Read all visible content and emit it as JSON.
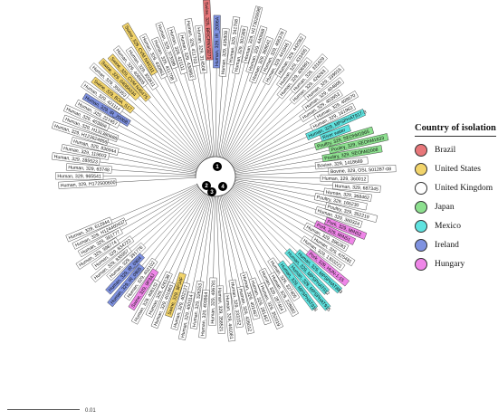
{
  "legend": {
    "title": "Country of isolation",
    "items": [
      {
        "label": "Brazil",
        "color": "#e8777a"
      },
      {
        "label": "United States",
        "color": "#f2d46b"
      },
      {
        "label": "United Kingdom",
        "color": "#ffffff"
      },
      {
        "label": "Japan",
        "color": "#8de08f"
      },
      {
        "label": "Mexico",
        "color": "#5fe3e0"
      },
      {
        "label": "Ireland",
        "color": "#7f92e0"
      },
      {
        "label": "Hungary",
        "color": "#ef86e8"
      }
    ]
  },
  "scale": {
    "label": "0.01"
  },
  "nodes": [
    "1",
    "2",
    "3",
    "4"
  ],
  "leaves": [
    {
      "label": "Human, 329, H172500600",
      "country": "United Kingdom"
    },
    {
      "label": "Human, 329, 965541",
      "country": "United Kingdom"
    },
    {
      "label": "Human, 329, 63748",
      "country": "United Kingdom"
    },
    {
      "label": "Human, 329, 285523",
      "country": "United Kingdom"
    },
    {
      "label": "Human, 329, 115603",
      "country": "United Kingdom"
    },
    {
      "label": "Human, 329, 836944",
      "country": "United Kingdom"
    },
    {
      "label": "Human, 329, H123624856",
      "country": "United Kingdom"
    },
    {
      "label": "Human, 329, H131380686",
      "country": "United Kingdom"
    },
    {
      "label": "Human, 329, 403866",
      "country": "United Kingdom"
    },
    {
      "label": "Human, 329, 227457",
      "country": "United Kingdom"
    },
    {
      "label": "Human, 329, IR_2006B",
      "country": "Ireland"
    },
    {
      "label": "Human, 329, 421114",
      "country": "United Kingdom"
    },
    {
      "label": "Swine, 329, BOA_S17",
      "country": "United States"
    },
    {
      "label": "Human, 329, 359353",
      "country": "United Kingdom"
    },
    {
      "label": "Swine, 329, 0408A034",
      "country": "United States"
    },
    {
      "label": "Swine, 329, CVM N46475",
      "country": "United States"
    },
    {
      "label": "Human, 329, 408805",
      "country": "United Kingdom"
    },
    {
      "label": "Human, 329, 303611",
      "country": "United Kingdom"
    },
    {
      "label": "Swine, 329, CVM N44311",
      "country": "United States"
    },
    {
      "label": "Human, 329, 430861",
      "country": "United Kingdom"
    },
    {
      "label": "Human, 329, 411708",
      "country": "United Kingdom"
    },
    {
      "label": "Human, 329, 373086",
      "country": "United Kingdom"
    },
    {
      "label": "Human, 329, 421111",
      "country": "United Kingdom"
    },
    {
      "label": "Human, 329, 430862",
      "country": "United Kingdom"
    },
    {
      "label": "Human, 329, 411703",
      "country": "United Kingdom"
    },
    {
      "label": "Human, 329, 314508",
      "country": "United Kingdom"
    },
    {
      "label": "Swine, 329, BR/CRNV3271",
      "country": "Brazil"
    },
    {
      "label": "Human, 329, IR_2006A",
      "country": "Ireland"
    },
    {
      "label": "Human, 329, 435808",
      "country": "United Kingdom"
    },
    {
      "label": "Human, 329, 341768",
      "country": "United Kingdom"
    },
    {
      "label": "Human, 329, 302389",
      "country": "United Kingdom"
    },
    {
      "label": "Human, 329, H173020698",
      "country": "United Kingdom"
    },
    {
      "label": "Human, 329, 440568",
      "country": "United Kingdom"
    },
    {
      "label": "Human, 329, 368641",
      "country": "United Kingdom"
    },
    {
      "label": "Human, 329, 406378",
      "country": "United Kingdom"
    },
    {
      "label": "Human, 329, 441846",
      "country": "United Kingdom"
    },
    {
      "label": "Human, 329, 442082",
      "country": "United Kingdom"
    },
    {
      "label": "Human, 329, 433495",
      "country": "United Kingdom"
    },
    {
      "label": "Human, 329, 406991",
      "country": "United Kingdom"
    },
    {
      "label": "Human, 329, 331629",
      "country": "United Kingdom"
    },
    {
      "label": "Human, 329, 426263",
      "country": "United Kingdom"
    },
    {
      "label": "Human, 329, 339016",
      "country": "United Kingdom"
    },
    {
      "label": "Human, 329, 404806",
      "country": "United Kingdom"
    },
    {
      "label": "Human, 329, 403953",
      "country": "United Kingdom"
    },
    {
      "label": "Human, 329, 408070",
      "country": "United Kingdom"
    },
    {
      "label": "Human, 329, 161963",
      "country": "United Kingdom"
    },
    {
      "label": "Human, 329, MPSPHAT917-3",
      "country": "Mexico"
    },
    {
      "label": "River water",
      "country": "Mexico"
    },
    {
      "label": "Poultry, 329, SEOhM1665",
      "country": "Japan"
    },
    {
      "label": "Poultry, 329, SEOhM1633",
      "country": "Japan"
    },
    {
      "label": "Poultry, 329, SEOhM2008",
      "country": "Japan"
    },
    {
      "label": "Bovine, 329, 1418689",
      "country": "United Kingdom"
    },
    {
      "label": "Bovine, 329, OSL S01287-08",
      "country": "United Kingdom"
    },
    {
      "label": "Human, 329, 360012",
      "country": "United Kingdom"
    },
    {
      "label": "Human, 329, 687345",
      "country": "United Kingdom"
    },
    {
      "label": "Human, 329, 368462",
      "country": "United Kingdom"
    },
    {
      "label": "Poultry, 329, 165230",
      "country": "United Kingdom"
    },
    {
      "label": "Poultry, 329, 352219",
      "country": "United Kingdom"
    },
    {
      "label": "Human, 329, 360324",
      "country": "United Kingdom"
    },
    {
      "label": "Pork, 329, MIN52",
      "country": "Hungary"
    },
    {
      "label": "Pork, 329, MIN51",
      "country": "Hungary"
    },
    {
      "label": "Human, 329, 396283",
      "country": "United Kingdom"
    },
    {
      "label": "Human, 329, 425481",
      "country": "United Kingdom"
    },
    {
      "label": "Human, 329, 1303221",
      "country": "United Kingdom"
    },
    {
      "label": "Pork, 329, HUN-1-15",
      "country": "Hungary"
    },
    {
      "label": "Human, 329, MPSPHAT883",
      "country": "Mexico"
    },
    {
      "label": "Human, 329, MPSPHAT912",
      "country": "Mexico"
    },
    {
      "label": "Human, 329, MPSPHAT915",
      "country": "Mexico"
    },
    {
      "label": "Human, 329, MPSPHAT918",
      "country": "Mexico"
    },
    {
      "label": "Human, 329, 327405",
      "country": "United Kingdom"
    },
    {
      "label": "Human, 329, 228882",
      "country": "United Kingdom"
    },
    {
      "label": "Human, 329, 287464",
      "country": "United Kingdom"
    },
    {
      "label": "Human, 329, 352019",
      "country": "United Kingdom"
    },
    {
      "label": "Human, 329, 281457",
      "country": "United Kingdom"
    },
    {
      "label": "Human, 329, 401467",
      "country": "United Kingdom"
    },
    {
      "label": "Human, 329, 426012",
      "country": "United Kingdom"
    },
    {
      "label": "Human, 329, 333152",
      "country": "United Kingdom"
    },
    {
      "label": "Human, 329, 441081",
      "country": "United Kingdom"
    },
    {
      "label": "Human, 329, 358521",
      "country": "United Kingdom"
    },
    {
      "label": "Human, 329, 406781",
      "country": "United Kingdom"
    },
    {
      "label": "Human, 329, 403864",
      "country": "United Kingdom"
    },
    {
      "label": "Human, 329, 326253",
      "country": "United Kingdom"
    },
    {
      "label": "Human, 329, 400314",
      "country": "United Kingdom"
    },
    {
      "label": "Human, 329, 402127",
      "country": "United Kingdom"
    },
    {
      "label": "Swine, 329, 9P34F",
      "country": "United States"
    },
    {
      "label": "Human, 329, 401863",
      "country": "United Kingdom"
    },
    {
      "label": "Human, 329, 426138",
      "country": "United Kingdom"
    },
    {
      "label": "Human, 329, 408132",
      "country": "United Kingdom"
    },
    {
      "label": "Swine, 329, 9P34J",
      "country": "Hungary"
    },
    {
      "label": "Human, 329, 402102",
      "country": "United Kingdom"
    },
    {
      "label": "Human, 329, IR_0905",
      "country": "Ireland"
    },
    {
      "label": "Human, 329, IR_0904",
      "country": "Ireland"
    },
    {
      "label": "Human, 329, 391776",
      "country": "United Kingdom"
    },
    {
      "label": "Human, 329, 835957",
      "country": "United Kingdom"
    },
    {
      "label": "Human, 329, 834722",
      "country": "United Kingdom"
    },
    {
      "label": "Human, 329, 398774",
      "country": "United Kingdom"
    },
    {
      "label": "Human, 329, 391777",
      "country": "United Kingdom"
    },
    {
      "label": "Human, 329, H124460437",
      "country": "United Kingdom"
    },
    {
      "label": "Human, 329, 612944",
      "country": "United Kingdom"
    }
  ]
}
